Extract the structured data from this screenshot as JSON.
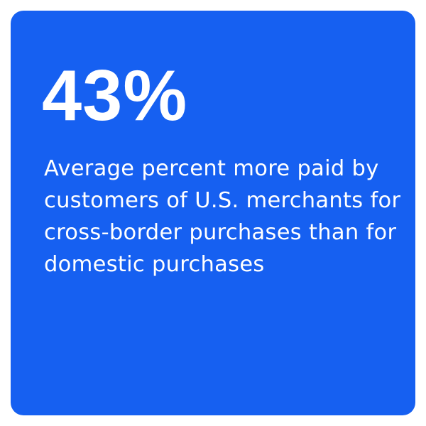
{
  "stat": "43%",
  "description": "Average percent more paid by customers of U.S. merchants for cross-border purchases than for domestic purchases",
  "colors": {
    "card": "#1660f1",
    "text": "#ffffff"
  }
}
